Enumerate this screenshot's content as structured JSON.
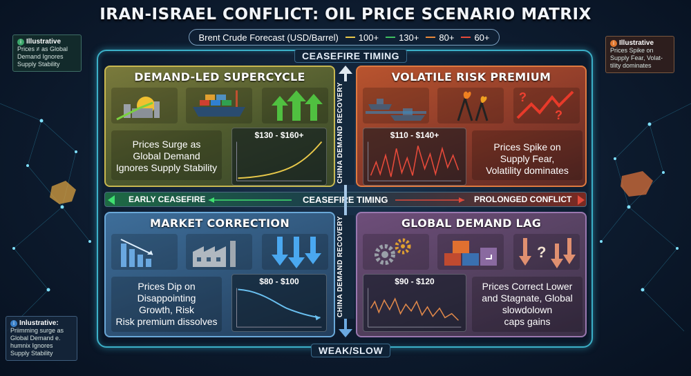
{
  "title": "IRAN-ISRAEL CONFLICT: OIL PRICE SCENARIO MATRIX",
  "legend": {
    "label": "Brent Crude Forecast (USD/Barrel)",
    "items": [
      {
        "label": "100+",
        "color": "#e8c84a"
      },
      {
        "label": "130+",
        "color": "#3fc060"
      },
      {
        "label": "80+",
        "color": "#e8883a"
      },
      {
        "label": "60+",
        "color": "#e84a3a"
      }
    ]
  },
  "notes": {
    "top_left": {
      "heading": "Illustrative",
      "lines": [
        "Prices ≠ as Global",
        "Demand Ignores",
        "Supply Stability"
      ]
    },
    "top_right": {
      "heading": "Illustrative",
      "lines": [
        "Prices Spike on",
        "Supply Fear, Volat-",
        "tility dominates"
      ]
    },
    "bottom_left": {
      "heading": "Inlustrative:",
      "lines": [
        "Priimming surge as",
        "Global Demand e.",
        "humnix Ignores",
        "Supply Stability"
      ]
    }
  },
  "axes": {
    "top_label": "CEASEFIRE TIMING",
    "center_label": "CEASEFIRE TIMING",
    "left_label": "EARLY CEASEFIRE",
    "right_label": "PROLONGED CONFLICT",
    "vertical_label_top": "CHINA DEMAND RECOVERY",
    "vertical_label_bottom": "CHINA DEMAND RECOVERY",
    "bottom_label": "WEAK/SLOW"
  },
  "quadrants": {
    "tl": {
      "title": "DEMAND-LED SUPERCYCLE",
      "range": "$130 - $160+",
      "desc": [
        "Prices Surge as",
        "Global Demand",
        "Ignores Supply Stability"
      ],
      "trend": "rising"
    },
    "tr": {
      "title": "VOLATILE RISK PREMIUM",
      "range": "$110 - $140+",
      "desc": [
        "Prices Spike on",
        "Supply Fear,",
        "Volatility dominates"
      ],
      "trend": "volatile"
    },
    "bl": {
      "title": "MARKET CORRECTION",
      "range": "$80 - $100",
      "desc": [
        "Prices Dip on",
        "Disappointing",
        "Growth, Risk",
        "Risk premium dissolves"
      ],
      "trend": "falling"
    },
    "br": {
      "title": "GLOBAL DEMAND LAG",
      "range": "$90 - $120",
      "desc": [
        "Prices Correct Lower",
        "and Stagnate, Global",
        "slowdolown",
        "caps gains"
      ],
      "trend": "choppy-down"
    }
  }
}
